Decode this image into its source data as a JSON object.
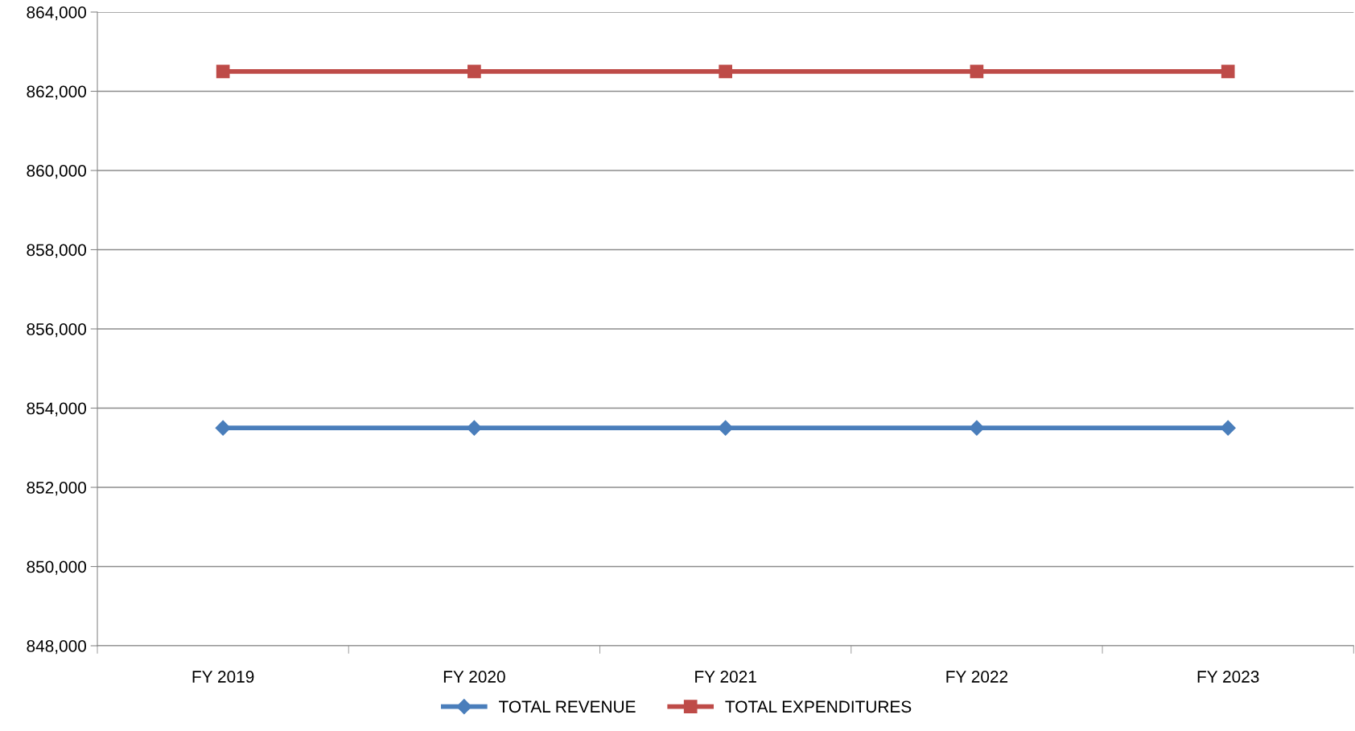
{
  "chart_data": {
    "type": "line",
    "categories": [
      "FY 2019",
      "FY 2020",
      "FY 2021",
      "FY 2022",
      "FY 2023"
    ],
    "series": [
      {
        "name": "TOTAL REVENUE",
        "color": "#4a7ebb",
        "marker": "diamond",
        "values": [
          853500,
          853500,
          853500,
          853500,
          853500
        ]
      },
      {
        "name": "TOTAL EXPENDITURES",
        "color": "#be4b48",
        "marker": "square",
        "values": [
          862500,
          862500,
          862500,
          862500,
          862500
        ]
      }
    ],
    "ylim": [
      848000,
      864000
    ],
    "yticks": [
      {
        "value": 848000,
        "label": "848,000"
      },
      {
        "value": 850000,
        "label": "850,000"
      },
      {
        "value": 852000,
        "label": "852,000"
      },
      {
        "value": 854000,
        "label": "854,000"
      },
      {
        "value": 856000,
        "label": "856,000"
      },
      {
        "value": 858000,
        "label": "858,000"
      },
      {
        "value": 860000,
        "label": "860,000"
      },
      {
        "value": 862000,
        "label": "862,000"
      },
      {
        "value": 864000,
        "label": "864,000"
      }
    ],
    "grid": "y",
    "legend": "bottom",
    "line_style": "solid"
  }
}
